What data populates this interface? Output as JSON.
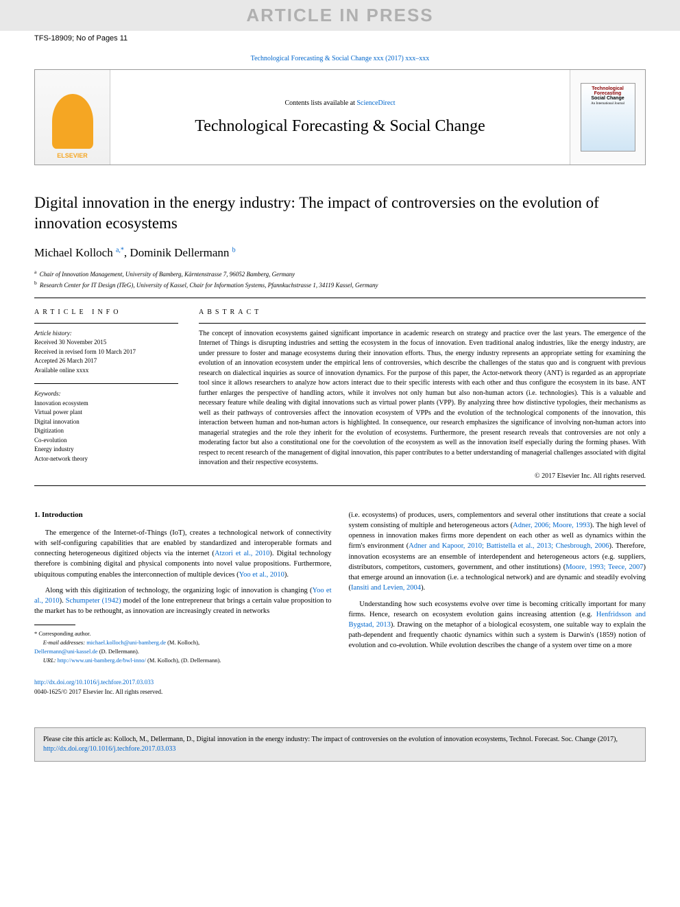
{
  "watermark": "ARTICLE IN PRESS",
  "manuscript_id": "TFS-18909; No of Pages 11",
  "journal_ref_text": "Technological Forecasting & Social Change xxx (2017) xxx–xxx",
  "journal_box": {
    "publisher": "ELSEVIER",
    "contents_prefix": "Contents lists available at ",
    "contents_link": "ScienceDirect",
    "journal_name": "Technological Forecasting & Social Change",
    "cover_line1": "Technological",
    "cover_line2": "Forecasting",
    "cover_line3": "Social Change",
    "cover_sub": "An International Journal"
  },
  "article": {
    "title": "Digital innovation in the energy industry: The impact of controversies on the evolution of innovation ecosystems",
    "author1": "Michael Kolloch",
    "author1_sup": "a,*",
    "author2": "Dominik Dellermann",
    "author2_sup": "b",
    "aff_a": "Chair of Innovation Management, University of Bamberg, Kärntenstrasse 7, 96052 Bamberg, Germany",
    "aff_b": "Research Center for IT Design (ITeG), University of Kassel, Chair for Information Systems, Pfannkuchstrasse 1, 34119 Kassel, Germany"
  },
  "info": {
    "heading": "article info",
    "history_label": "Article history:",
    "received": "Received 30 November 2015",
    "revised": "Received in revised form 10 March 2017",
    "accepted": "Accepted 26 March 2017",
    "available": "Available online xxxx",
    "keywords_label": "Keywords:",
    "kw1": "Innovation ecosystem",
    "kw2": "Virtual power plant",
    "kw3": "Digital innovation",
    "kw4": "Digitization",
    "kw5": "Co-evolution",
    "kw6": "Energy industry",
    "kw7": "Actor-network theory"
  },
  "abstract": {
    "heading": "abstract",
    "text": "The concept of innovation ecosystems gained significant importance in academic research on strategy and practice over the last years. The emergence of the Internet of Things is disrupting industries and setting the ecosystem in the focus of innovation. Even traditional analog industries, like the energy industry, are under pressure to foster and manage ecosystems during their innovation efforts. Thus, the energy industry represents an appropriate setting for examining the evolution of an innovation ecosystem under the empirical lens of controversies, which describe the challenges of the status quo and is congruent with previous research on dialectical inquiries as source of innovation dynamics. For the purpose of this paper, the Actor-network theory (ANT) is regarded as an appropriate tool since it allows researchers to analyze how actors interact due to their specific interests with each other and thus configure the ecosystem in its base. ANT further enlarges the perspective of handling actors, while it involves not only human but also non-human actors (i.e. technologies). This is a valuable and necessary feature while dealing with digital innovations such as virtual power plants (VPP). By analyzing three how distinctive typologies, their mechanisms as well as their pathways of controversies affect the innovation ecosystem of VPPs and the evolution of the technological components of the innovation, this interaction between human and non-human actors is highlighted. In consequence, our research emphasizes the significance of involving non-human actors into managerial strategies and the role they inherit for the evolution of ecosystems. Furthermore, the present research reveals that controversies are not only a moderating factor but also a constitutional one for the coevolution of the ecosystem as well as the innovation itself especially during the forming phases. With respect to recent research of the management of digital innovation, this paper contributes to a better understanding of managerial challenges associated with digital innovation and their respective ecosystems.",
    "copyright": "© 2017 Elsevier Inc. All rights reserved."
  },
  "body": {
    "section1_heading": "1. Introduction",
    "col1_p1_a": "The emergence of the Internet-of-Things (IoT), creates a technological network of connectivity with self-configuring capabilities that are enabled by standardized and interoperable formats and connecting heterogeneous digitized objects via the internet (",
    "col1_p1_link1": "Atzori et al., 2010",
    "col1_p1_b": "). Digital technology therefore is combining digital and physical components into novel value propositions. Furthermore, ubiquitous computing enables the interconnection of multiple devices (",
    "col1_p1_link2": "Yoo et al., 2010",
    "col1_p1_c": ").",
    "col1_p2_a": "Along with this digitization of technology, the organizing logic of innovation is changing (",
    "col1_p2_link1": "Yoo et al., 2010",
    "col1_p2_b": "). ",
    "col1_p2_link2": "Schumpeter (1942)",
    "col1_p2_c": " model of the lone entrepreneur that brings a certain value proposition to the market has to be rethought, as innovation are increasingly created in networks",
    "col2_p1_a": "(i.e. ecosystems) of produces, users, complementors and several other institutions that create a social system consisting of multiple and heterogeneous actors (",
    "col2_p1_link1": "Adner, 2006; Moore, 1993",
    "col2_p1_b": "). The high level of openness in innovation makes firms more dependent on each other as well as dynamics within the firm's environment (",
    "col2_p1_link2": "Adner and Kapoor, 2010; Battistella et al., 2013; Chesbrough, 2006",
    "col2_p1_c": "). Therefore, innovation ecosystems are an ensemble of interdependent and heterogeneous actors (e.g. suppliers, distributors, competitors, customers, government, and other institutions) (",
    "col2_p1_link3": "Moore, 1993; Teece, 2007",
    "col2_p1_d": ") that emerge around an innovation (i.e. a technological network) and are dynamic and steadily evolving (",
    "col2_p1_link4": "Iansiti and Levien, 2004",
    "col2_p1_e": ").",
    "col2_p2_a": "Understanding how such ecosystems evolve over time is becoming critically important for many firms. Hence, research on ecosystem evolution gains increasing attention (e.g. ",
    "col2_p2_link1": "Henfridsson and Bygstad, 2013",
    "col2_p2_b": "). Drawing on the metaphor of a biological ecosystem, one suitable way to explain the path-dependent and frequently chaotic dynamics within such a system is Darwin's (1859) notion of evolution and co-evolution. While evolution describes the change of a system over time on a more"
  },
  "footnotes": {
    "corresp": "* Corresponding author.",
    "email_label": "E-mail addresses: ",
    "email1": "michael.kolloch@uni-bamberg.de",
    "email1_suffix": " (M. Kolloch),",
    "email2": "Dellermann@uni-kassel.de",
    "email2_suffix": " (D. Dellermann).",
    "url_label": "URL: ",
    "url1": "http://www.uni-bamberg.de/bwl-inno/",
    "url_suffix": " (M. Kolloch),  (D. Dellermann)."
  },
  "doi": {
    "link": "http://dx.doi.org/10.1016/j.techfore.2017.03.033",
    "line2": "0040-1625/© 2017 Elsevier Inc. All rights reserved."
  },
  "citation": {
    "text_a": "Please cite this article as: Kolloch, M., Dellermann, D., Digital innovation in the energy industry: The impact of controversies on the evolution of innovation ecosystems, Technol. Forecast. Soc. Change (2017), ",
    "link": "http://dx.doi.org/10.1016/j.techfore.2017.03.033"
  },
  "colors": {
    "link": "#0066cc",
    "watermark_bg": "#e8e8e8",
    "watermark_fg": "#b0b0b0",
    "elsevier": "#f5a623"
  }
}
